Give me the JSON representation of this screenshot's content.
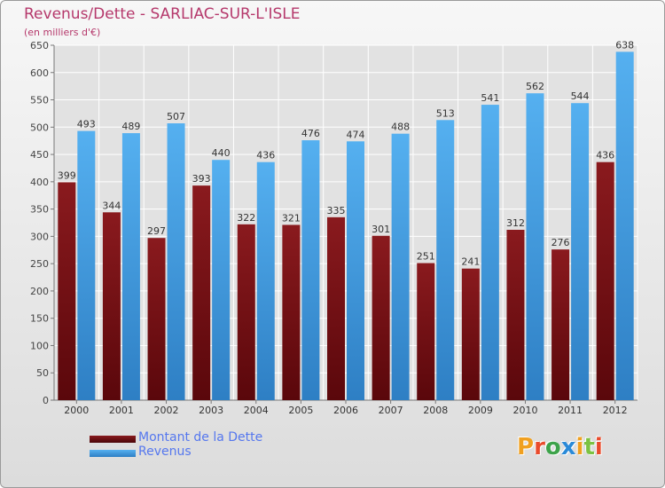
{
  "title": "Revenus/Dette - SARLIAC-SUR-L'ISLE",
  "subtitle": "(en milliers d'€)",
  "logo_text": "Proxiti",
  "colors": {
    "debt": "#7a1216",
    "revenue": "#4aa3e6",
    "title": "#b5386b",
    "legend_text": "#5577ee"
  },
  "chart_data": {
    "type": "bar",
    "categories": [
      "2000",
      "2001",
      "2002",
      "2003",
      "2004",
      "2005",
      "2006",
      "2007",
      "2008",
      "2009",
      "2010",
      "2011",
      "2012"
    ],
    "series": [
      {
        "name": "Montant de la Dette",
        "values": [
          399,
          344,
          297,
          393,
          322,
          321,
          335,
          301,
          251,
          241,
          312,
          276,
          436
        ]
      },
      {
        "name": "Revenus",
        "values": [
          493,
          489,
          507,
          440,
          436,
          476,
          474,
          488,
          513,
          541,
          562,
          544,
          638
        ]
      }
    ],
    "ylim": [
      0,
      650
    ],
    "yticks": [
      0,
      50,
      100,
      150,
      200,
      250,
      300,
      350,
      400,
      450,
      500,
      550,
      600,
      650
    ],
    "grid": true,
    "legend_position": "bottom-left"
  }
}
